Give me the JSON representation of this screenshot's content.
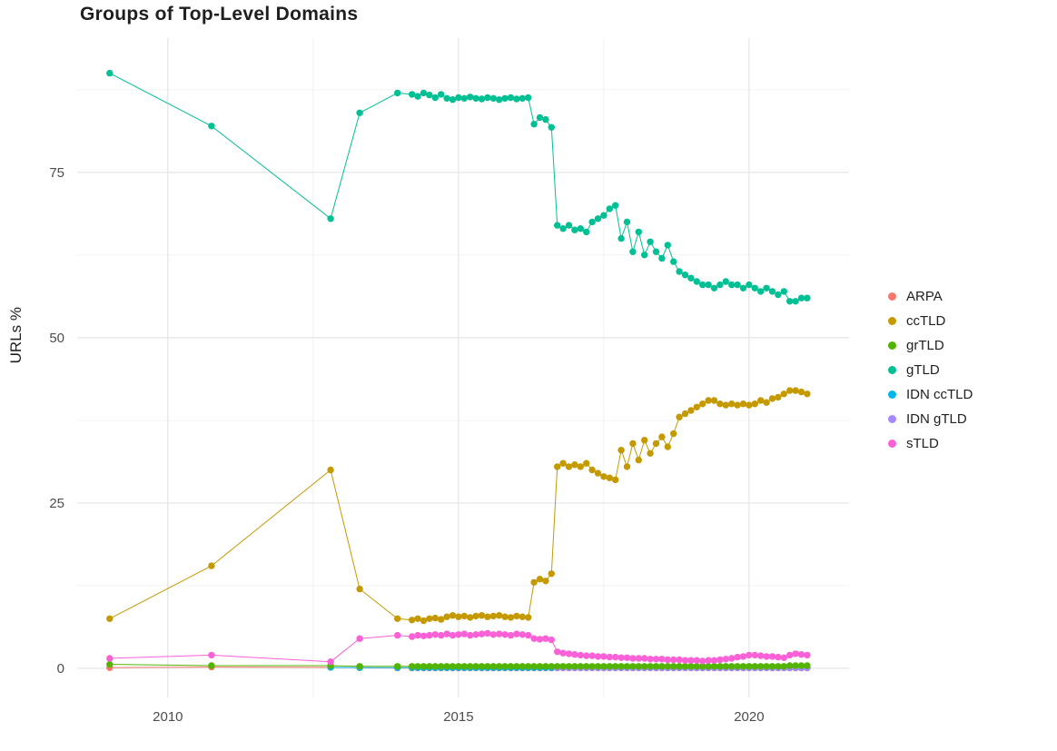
{
  "chart_data": {
    "type": "line",
    "title": "Groups of Top-Level Domains",
    "xlabel": "",
    "ylabel": "URLs %",
    "x_ticks": [
      2010,
      2015,
      2020
    ],
    "x_minor_ticks": [
      2012.5,
      2017.5
    ],
    "y_ticks": [
      0,
      25,
      50,
      75
    ],
    "y_minor_ticks": [
      12.5,
      37.5,
      62.5,
      87.5
    ],
    "xlim": [
      2008.44,
      2021.72
    ],
    "ylim": [
      -4.4,
      95.3
    ],
    "grid": true,
    "legend_position": "right",
    "x": [
      2009,
      2010.75,
      2012.8,
      2013.3,
      2013.95,
      2014.2,
      2014.3,
      2014.4,
      2014.5,
      2014.6,
      2014.7,
      2014.8,
      2014.9,
      2015,
      2015.1,
      2015.2,
      2015.3,
      2015.4,
      2015.5,
      2015.6,
      2015.7,
      2015.8,
      2015.9,
      2016,
      2016.1,
      2016.2,
      2016.3,
      2016.4,
      2016.5,
      2016.6,
      2016.7,
      2016.8,
      2016.9,
      2017,
      2017.1,
      2017.2,
      2017.3,
      2017.4,
      2017.5,
      2017.6,
      2017.7,
      2017.8,
      2017.9,
      2018,
      2018.1,
      2018.2,
      2018.3,
      2018.4,
      2018.5,
      2018.6,
      2018.7,
      2018.8,
      2018.9,
      2019,
      2019.1,
      2019.2,
      2019.3,
      2019.4,
      2019.5,
      2019.6,
      2019.7,
      2019.8,
      2019.9,
      2020,
      2020.1,
      2020.2,
      2020.3,
      2020.4,
      2020.5,
      2020.6,
      2020.7,
      2020.8,
      2020.9,
      2021
    ],
    "series": [
      {
        "name": "ARPA",
        "color": "#F8766D",
        "values": [
          0.1,
          0.2,
          0.15,
          0.1,
          0.05,
          0.05,
          0.05,
          0.05,
          0.05,
          0.05,
          0.05,
          0.05,
          0.05,
          0.05,
          0.05,
          0.05,
          0.05,
          0.05,
          0.05,
          0.05,
          0.05,
          0.05,
          0.05,
          0.05,
          0.05,
          0.05,
          0.05,
          0.05,
          0.05,
          0.05,
          0.05,
          0.05,
          0.05,
          0.05,
          0.05,
          0.05,
          0.05,
          0.05,
          0.05,
          0.05,
          0.05,
          0.05,
          0.05,
          0.05,
          0.05,
          0.05,
          0.05,
          0.05,
          0.05,
          0.05,
          0.05,
          0.05,
          0.05,
          0.05,
          0.05,
          0.05,
          0.05,
          0.05,
          0.05,
          0.05,
          0.05,
          0.05,
          0.05,
          0.05,
          0.05,
          0.05,
          0.05,
          0.05,
          0.05,
          0.05,
          0.05,
          0.05,
          0.05,
          0.05
        ]
      },
      {
        "name": "ccTLD",
        "color": "#C49A00",
        "values": [
          7.5,
          15.5,
          30,
          12,
          7.5,
          7.3,
          7.5,
          7.2,
          7.5,
          7.6,
          7.4,
          7.8,
          8,
          7.8,
          7.9,
          7.7,
          7.9,
          8,
          7.8,
          7.9,
          8,
          7.8,
          7.7,
          7.9,
          7.8,
          7.7,
          13,
          13.5,
          13.2,
          14.3,
          30.5,
          31,
          30.5,
          30.8,
          30.5,
          31,
          30,
          29.5,
          29,
          28.8,
          28.5,
          33,
          30.5,
          34,
          31.5,
          34.5,
          32.5,
          34,
          35,
          33.5,
          35.5,
          38,
          38.5,
          39,
          39.5,
          40,
          40.5,
          40.5,
          40,
          39.8,
          40,
          39.8,
          40,
          39.8,
          40,
          40.5,
          40.2,
          40.8,
          41,
          41.5,
          42,
          42,
          41.8,
          41.5
        ]
      },
      {
        "name": "grTLD",
        "color": "#53B400",
        "values": [
          0.6,
          0.4,
          0.4,
          0.3,
          0.3,
          0.3,
          0.3,
          0.3,
          0.3,
          0.3,
          0.3,
          0.3,
          0.3,
          0.3,
          0.3,
          0.3,
          0.3,
          0.3,
          0.3,
          0.3,
          0.3,
          0.3,
          0.3,
          0.3,
          0.3,
          0.3,
          0.3,
          0.3,
          0.3,
          0.3,
          0.3,
          0.3,
          0.3,
          0.3,
          0.3,
          0.3,
          0.3,
          0.3,
          0.3,
          0.3,
          0.3,
          0.3,
          0.3,
          0.3,
          0.3,
          0.3,
          0.3,
          0.3,
          0.3,
          0.3,
          0.3,
          0.3,
          0.3,
          0.3,
          0.3,
          0.3,
          0.3,
          0.3,
          0.3,
          0.3,
          0.3,
          0.3,
          0.3,
          0.3,
          0.3,
          0.3,
          0.3,
          0.3,
          0.3,
          0.3,
          0.4,
          0.4,
          0.4,
          0.4
        ]
      },
      {
        "name": "gTLD",
        "color": "#00C094",
        "values": [
          90,
          82,
          68,
          84,
          87,
          86.8,
          86.5,
          87,
          86.7,
          86.3,
          86.8,
          86.2,
          86,
          86.3,
          86.2,
          86.4,
          86.2,
          86.1,
          86.3,
          86.2,
          86,
          86.2,
          86.3,
          86.1,
          86.2,
          86.3,
          82.3,
          83.3,
          83,
          81.8,
          67,
          66.5,
          67,
          66.3,
          66.5,
          66,
          67.5,
          68,
          68.5,
          69.5,
          70,
          65,
          67.5,
          63,
          66,
          62.5,
          64.5,
          63,
          62,
          64,
          61.5,
          60,
          59.5,
          59,
          58.5,
          58,
          58,
          57.5,
          58,
          58.5,
          58,
          58,
          57.5,
          58,
          57.5,
          57,
          57.5,
          57,
          56.5,
          57,
          55.5,
          55.5,
          56,
          56
        ]
      },
      {
        "name": "IDN ccTLD",
        "color": "#00B6EB",
        "values": [
          null,
          null,
          0.15,
          0.1,
          0.1,
          0.1,
          0.1,
          0.1,
          0.1,
          0.1,
          0.1,
          0.1,
          0.1,
          0.1,
          0.1,
          0.1,
          0.1,
          0.1,
          0.1,
          0.1,
          0.1,
          0.1,
          0.1,
          0.1,
          0.1,
          0.1,
          0.1,
          0.1,
          0.1,
          0.1,
          0.1,
          0.1,
          0.1,
          0.1,
          0.1,
          0.1,
          0.1,
          0.1,
          0.1,
          0.1,
          0.1,
          0.1,
          0.1,
          0.1,
          0.1,
          0.1,
          0.1,
          0.1,
          0.1,
          0.1,
          0.1,
          0.1,
          0.1,
          0.1,
          0.1,
          0.1,
          0.1,
          0.1,
          0.1,
          0.1,
          0.1,
          0.1,
          0.1,
          0.1,
          0.1,
          0.1,
          0.1,
          0.1,
          0.1,
          0.1,
          0.1,
          0.1,
          0.1,
          0.1
        ]
      },
      {
        "name": "IDN gTLD",
        "color": "#A58AFF",
        "values": [
          null,
          null,
          null,
          null,
          null,
          null,
          null,
          null,
          null,
          null,
          null,
          null,
          null,
          null,
          null,
          null,
          null,
          null,
          null,
          null,
          null,
          null,
          null,
          null,
          null,
          null,
          null,
          null,
          null,
          null,
          0.1,
          0.1,
          0.1,
          0.1,
          0.1,
          0.1,
          0.1,
          0.1,
          0.1,
          0.1,
          0.1,
          0.1,
          0.1,
          0.1,
          0.1,
          0.1,
          0.1,
          0.1,
          0.1,
          0.1,
          0.1,
          0.1,
          0.1,
          0.1,
          0.1,
          0.1,
          0.1,
          0.1,
          0.1,
          0.1,
          0.1,
          0.1,
          0.1,
          0.1,
          0.1,
          0.1,
          0.1,
          0.1,
          0.1,
          0.1,
          0.1,
          0.1,
          0.1,
          0.1
        ]
      },
      {
        "name": "sTLD",
        "color": "#FB61D7",
        "values": [
          1.5,
          2,
          1,
          4.5,
          5,
          4.8,
          5,
          4.9,
          5,
          5.1,
          5,
          5.2,
          5,
          5.1,
          5.2,
          5,
          5.1,
          5.2,
          5.3,
          5.1,
          5.2,
          5.1,
          5,
          5.2,
          5.1,
          5,
          4.5,
          4.4,
          4.5,
          4.3,
          2.5,
          2.3,
          2.2,
          2.1,
          2,
          1.9,
          1.9,
          1.8,
          1.8,
          1.7,
          1.7,
          1.6,
          1.6,
          1.5,
          1.5,
          1.5,
          1.4,
          1.4,
          1.4,
          1.3,
          1.3,
          1.3,
          1.2,
          1.2,
          1.2,
          1.1,
          1.2,
          1.2,
          1.3,
          1.4,
          1.5,
          1.7,
          1.8,
          2,
          2,
          1.9,
          1.8,
          1.8,
          1.7,
          1.6,
          2,
          2.2,
          2.1,
          2
        ]
      }
    ]
  }
}
